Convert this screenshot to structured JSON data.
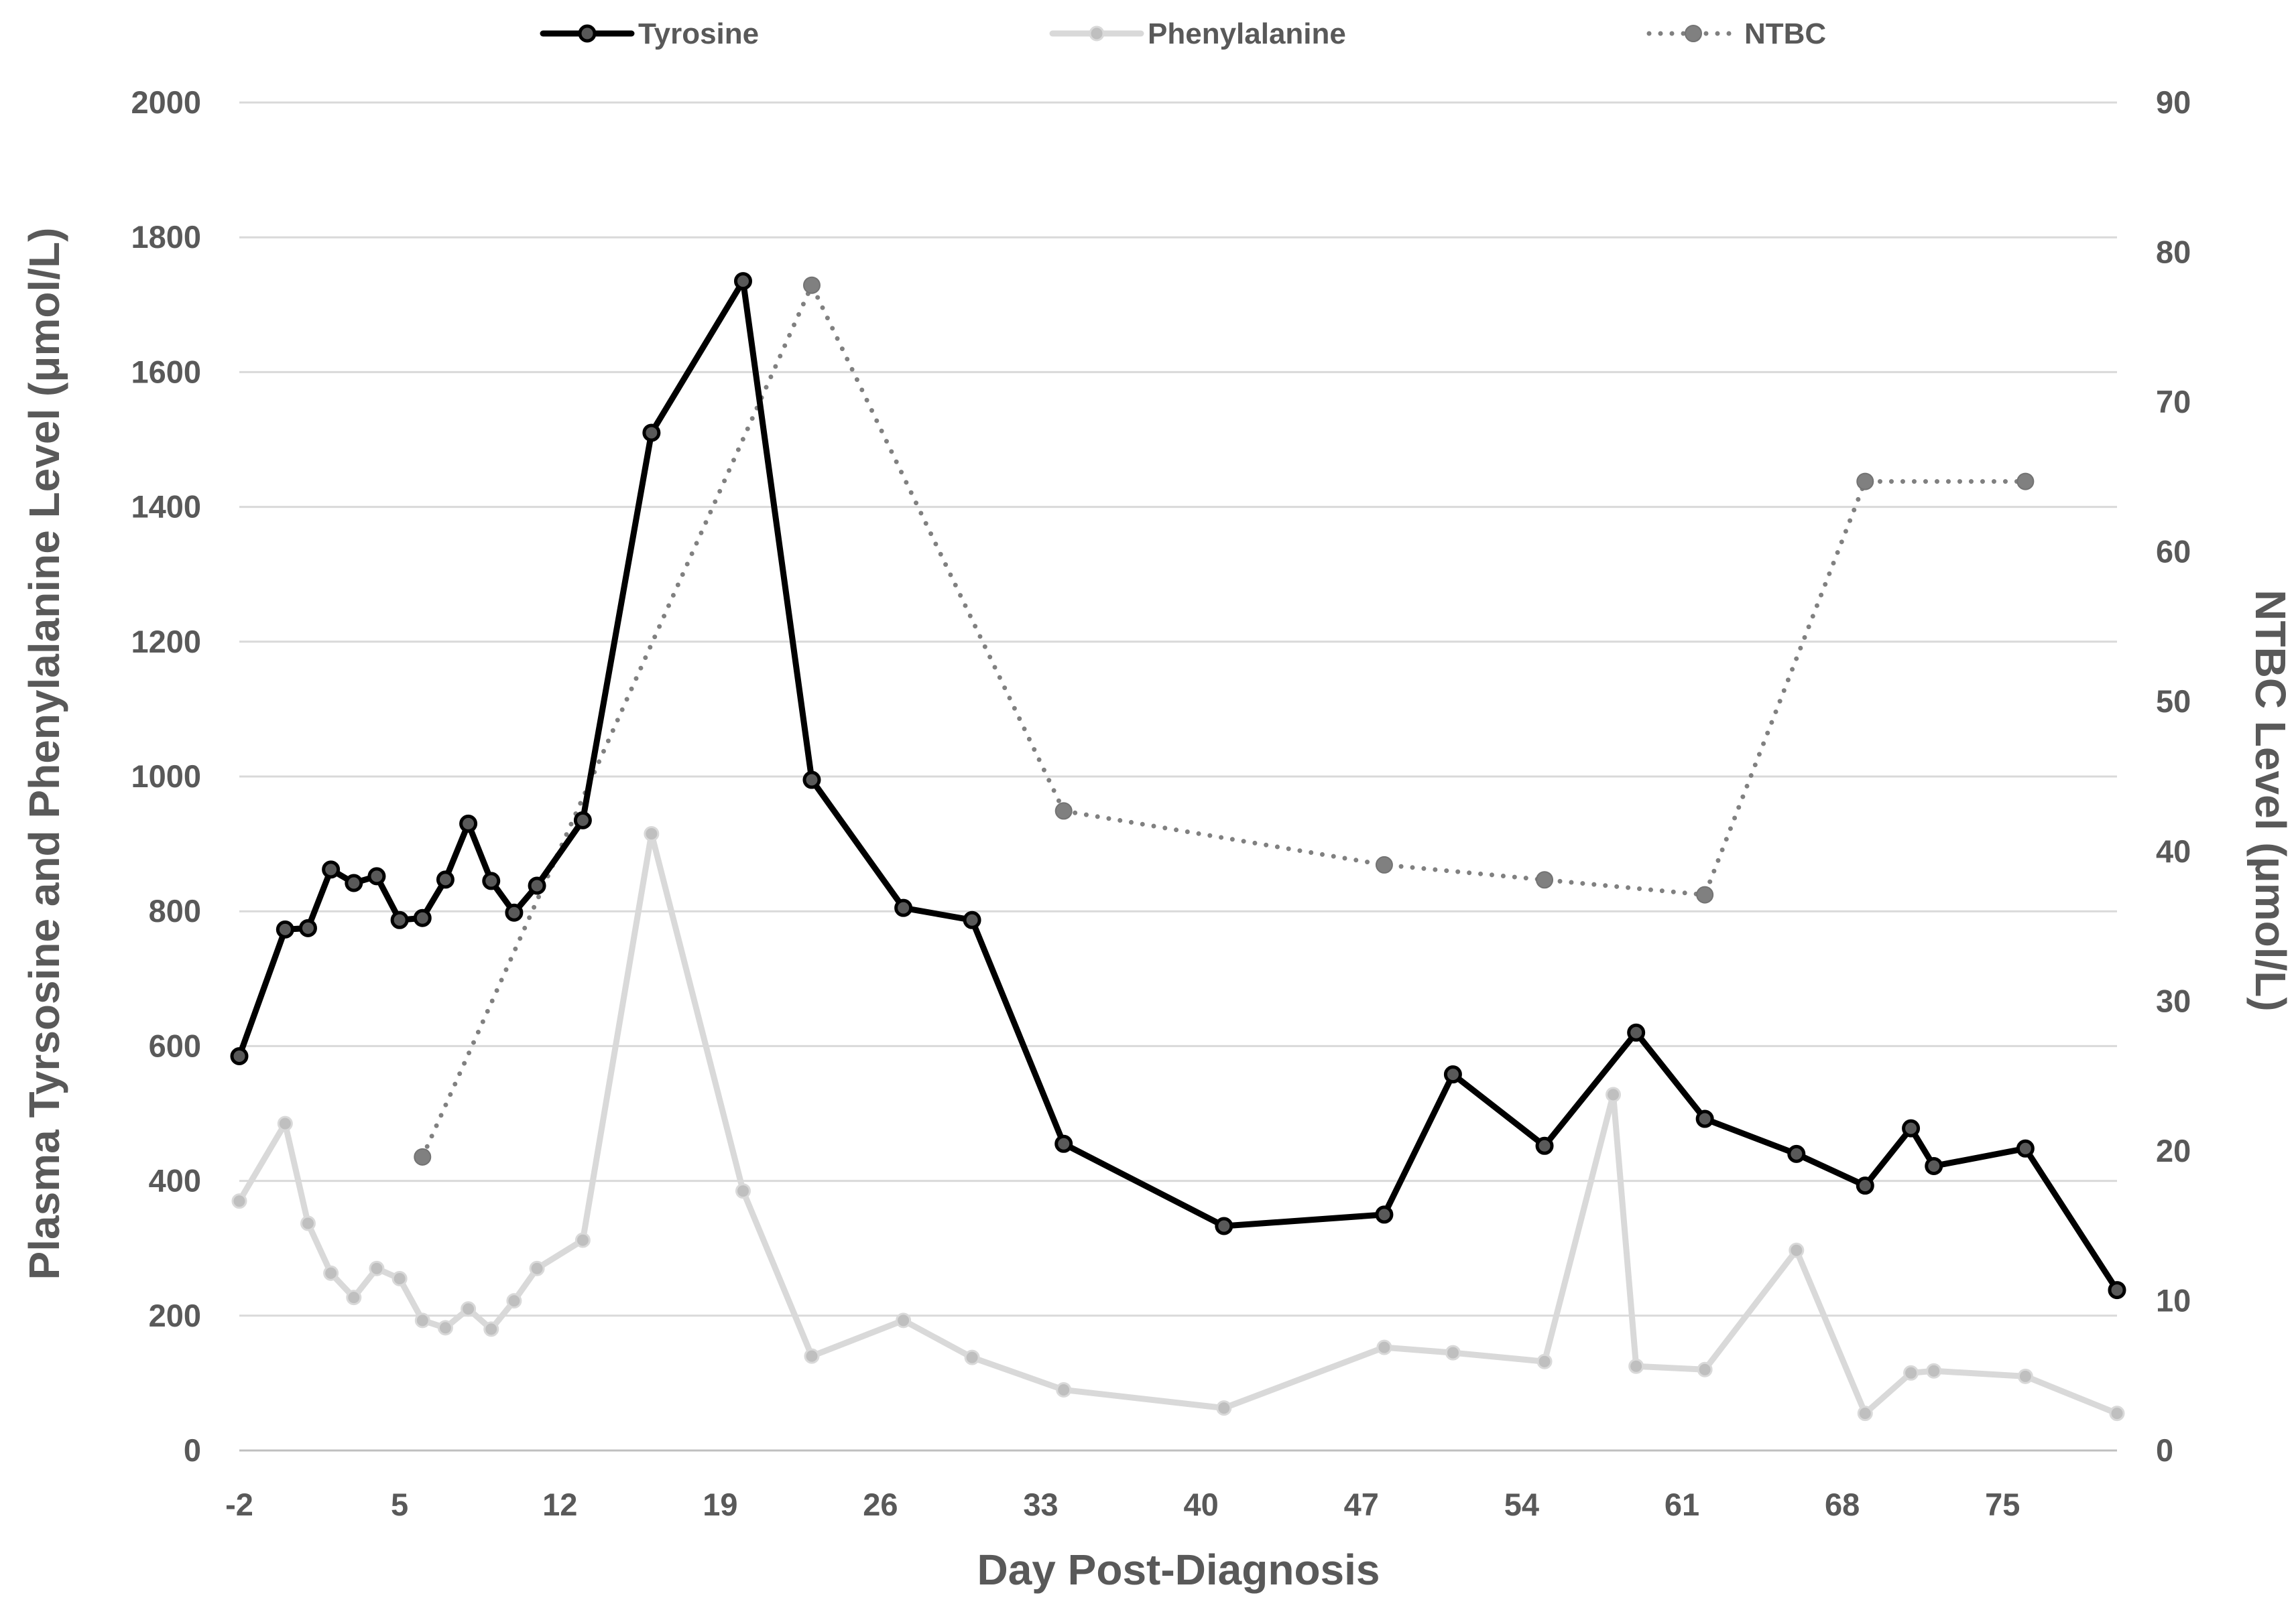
{
  "chart_data": {
    "type": "line",
    "x_axis": {
      "title": "Day Post-Diagnosis",
      "min": -2,
      "max": 80,
      "ticks": [
        -2,
        5,
        12,
        19,
        26,
        33,
        40,
        47,
        54,
        61,
        68,
        75
      ],
      "tick_labels": [
        "-2",
        "5",
        "12",
        "19",
        "26",
        "33",
        "40",
        "47",
        "54",
        "61",
        "68",
        "75"
      ]
    },
    "y_axis_left": {
      "title": "Plasma Tyrsosine and Phenylalanine Level (μmol/L)",
      "min": 0,
      "max": 2000,
      "ticks": [
        0,
        200,
        400,
        600,
        800,
        1000,
        1200,
        1400,
        1600,
        1800,
        2000
      ],
      "tick_labels": [
        "0",
        "200",
        "400",
        "600",
        "800",
        "1000",
        "1200",
        "1400",
        "1600",
        "1800",
        "2000"
      ]
    },
    "y_axis_right": {
      "title": "NTBC Level (μmol/L)",
      "min": 0,
      "max": 90,
      "ticks": [
        0,
        10,
        20,
        30,
        40,
        50,
        60,
        70,
        80,
        90
      ],
      "tick_labels": [
        "0",
        "10",
        "20",
        "30",
        "40",
        "50",
        "60",
        "70",
        "80",
        "90"
      ]
    },
    "grid": true,
    "legend": {
      "position": "top",
      "entries": [
        "Tyrosine",
        "Phenylalanine",
        "NTBC"
      ]
    },
    "series": [
      {
        "name": "Tyrosine",
        "axis": "left",
        "color": "#000000",
        "marker_color": "#595959",
        "line_style": "solid",
        "points": [
          [
            -2,
            585
          ],
          [
            0,
            773
          ],
          [
            1,
            775
          ],
          [
            2,
            862
          ],
          [
            3,
            842
          ],
          [
            4,
            852
          ],
          [
            5,
            787
          ],
          [
            6,
            790
          ],
          [
            7,
            847
          ],
          [
            8,
            930
          ],
          [
            9,
            845
          ],
          [
            10,
            798
          ],
          [
            11,
            838
          ],
          [
            13,
            935
          ],
          [
            16,
            1510
          ],
          [
            20,
            1735
          ],
          [
            23,
            995
          ],
          [
            27,
            805
          ],
          [
            30,
            787
          ],
          [
            34,
            455
          ],
          [
            41,
            333
          ],
          [
            48,
            350
          ],
          [
            51,
            558
          ],
          [
            55,
            452
          ],
          [
            59,
            620
          ],
          [
            62,
            492
          ],
          [
            66,
            440
          ],
          [
            69,
            393
          ],
          [
            71,
            478
          ],
          [
            72,
            422
          ],
          [
            76,
            448
          ],
          [
            80,
            238
          ]
        ]
      },
      {
        "name": "Phenylalanine",
        "axis": "left",
        "color": "#d9d9d9",
        "marker_color": "#bfbfbf",
        "line_style": "solid",
        "points": [
          [
            -2,
            370
          ],
          [
            0,
            485
          ],
          [
            1,
            337
          ],
          [
            2,
            263
          ],
          [
            3,
            227
          ],
          [
            4,
            270
          ],
          [
            5,
            255
          ],
          [
            6,
            193
          ],
          [
            7,
            182
          ],
          [
            8,
            210
          ],
          [
            9,
            180
          ],
          [
            10,
            222
          ],
          [
            11,
            270
          ],
          [
            13,
            312
          ],
          [
            16,
            915
          ],
          [
            20,
            385
          ],
          [
            23,
            140
          ],
          [
            27,
            193
          ],
          [
            30,
            138
          ],
          [
            34,
            90
          ],
          [
            41,
            63
          ],
          [
            48,
            153
          ],
          [
            51,
            145
          ],
          [
            55,
            132
          ],
          [
            58,
            528
          ],
          [
            59,
            125
          ],
          [
            62,
            120
          ],
          [
            66,
            297
          ],
          [
            69,
            55
          ],
          [
            71,
            115
          ],
          [
            72,
            118
          ],
          [
            76,
            110
          ],
          [
            80,
            55
          ]
        ]
      },
      {
        "name": "NTBC",
        "axis": "right",
        "color": "#808080",
        "marker_color": "#808080",
        "line_style": "dotted",
        "points": [
          [
            6,
            19.6
          ],
          [
            23,
            77.8
          ],
          [
            34,
            42.7
          ],
          [
            48,
            39.1
          ],
          [
            55,
            38.1
          ],
          [
            62,
            37.1
          ],
          [
            69,
            64.7
          ],
          [
            76,
            64.7
          ]
        ]
      }
    ]
  }
}
